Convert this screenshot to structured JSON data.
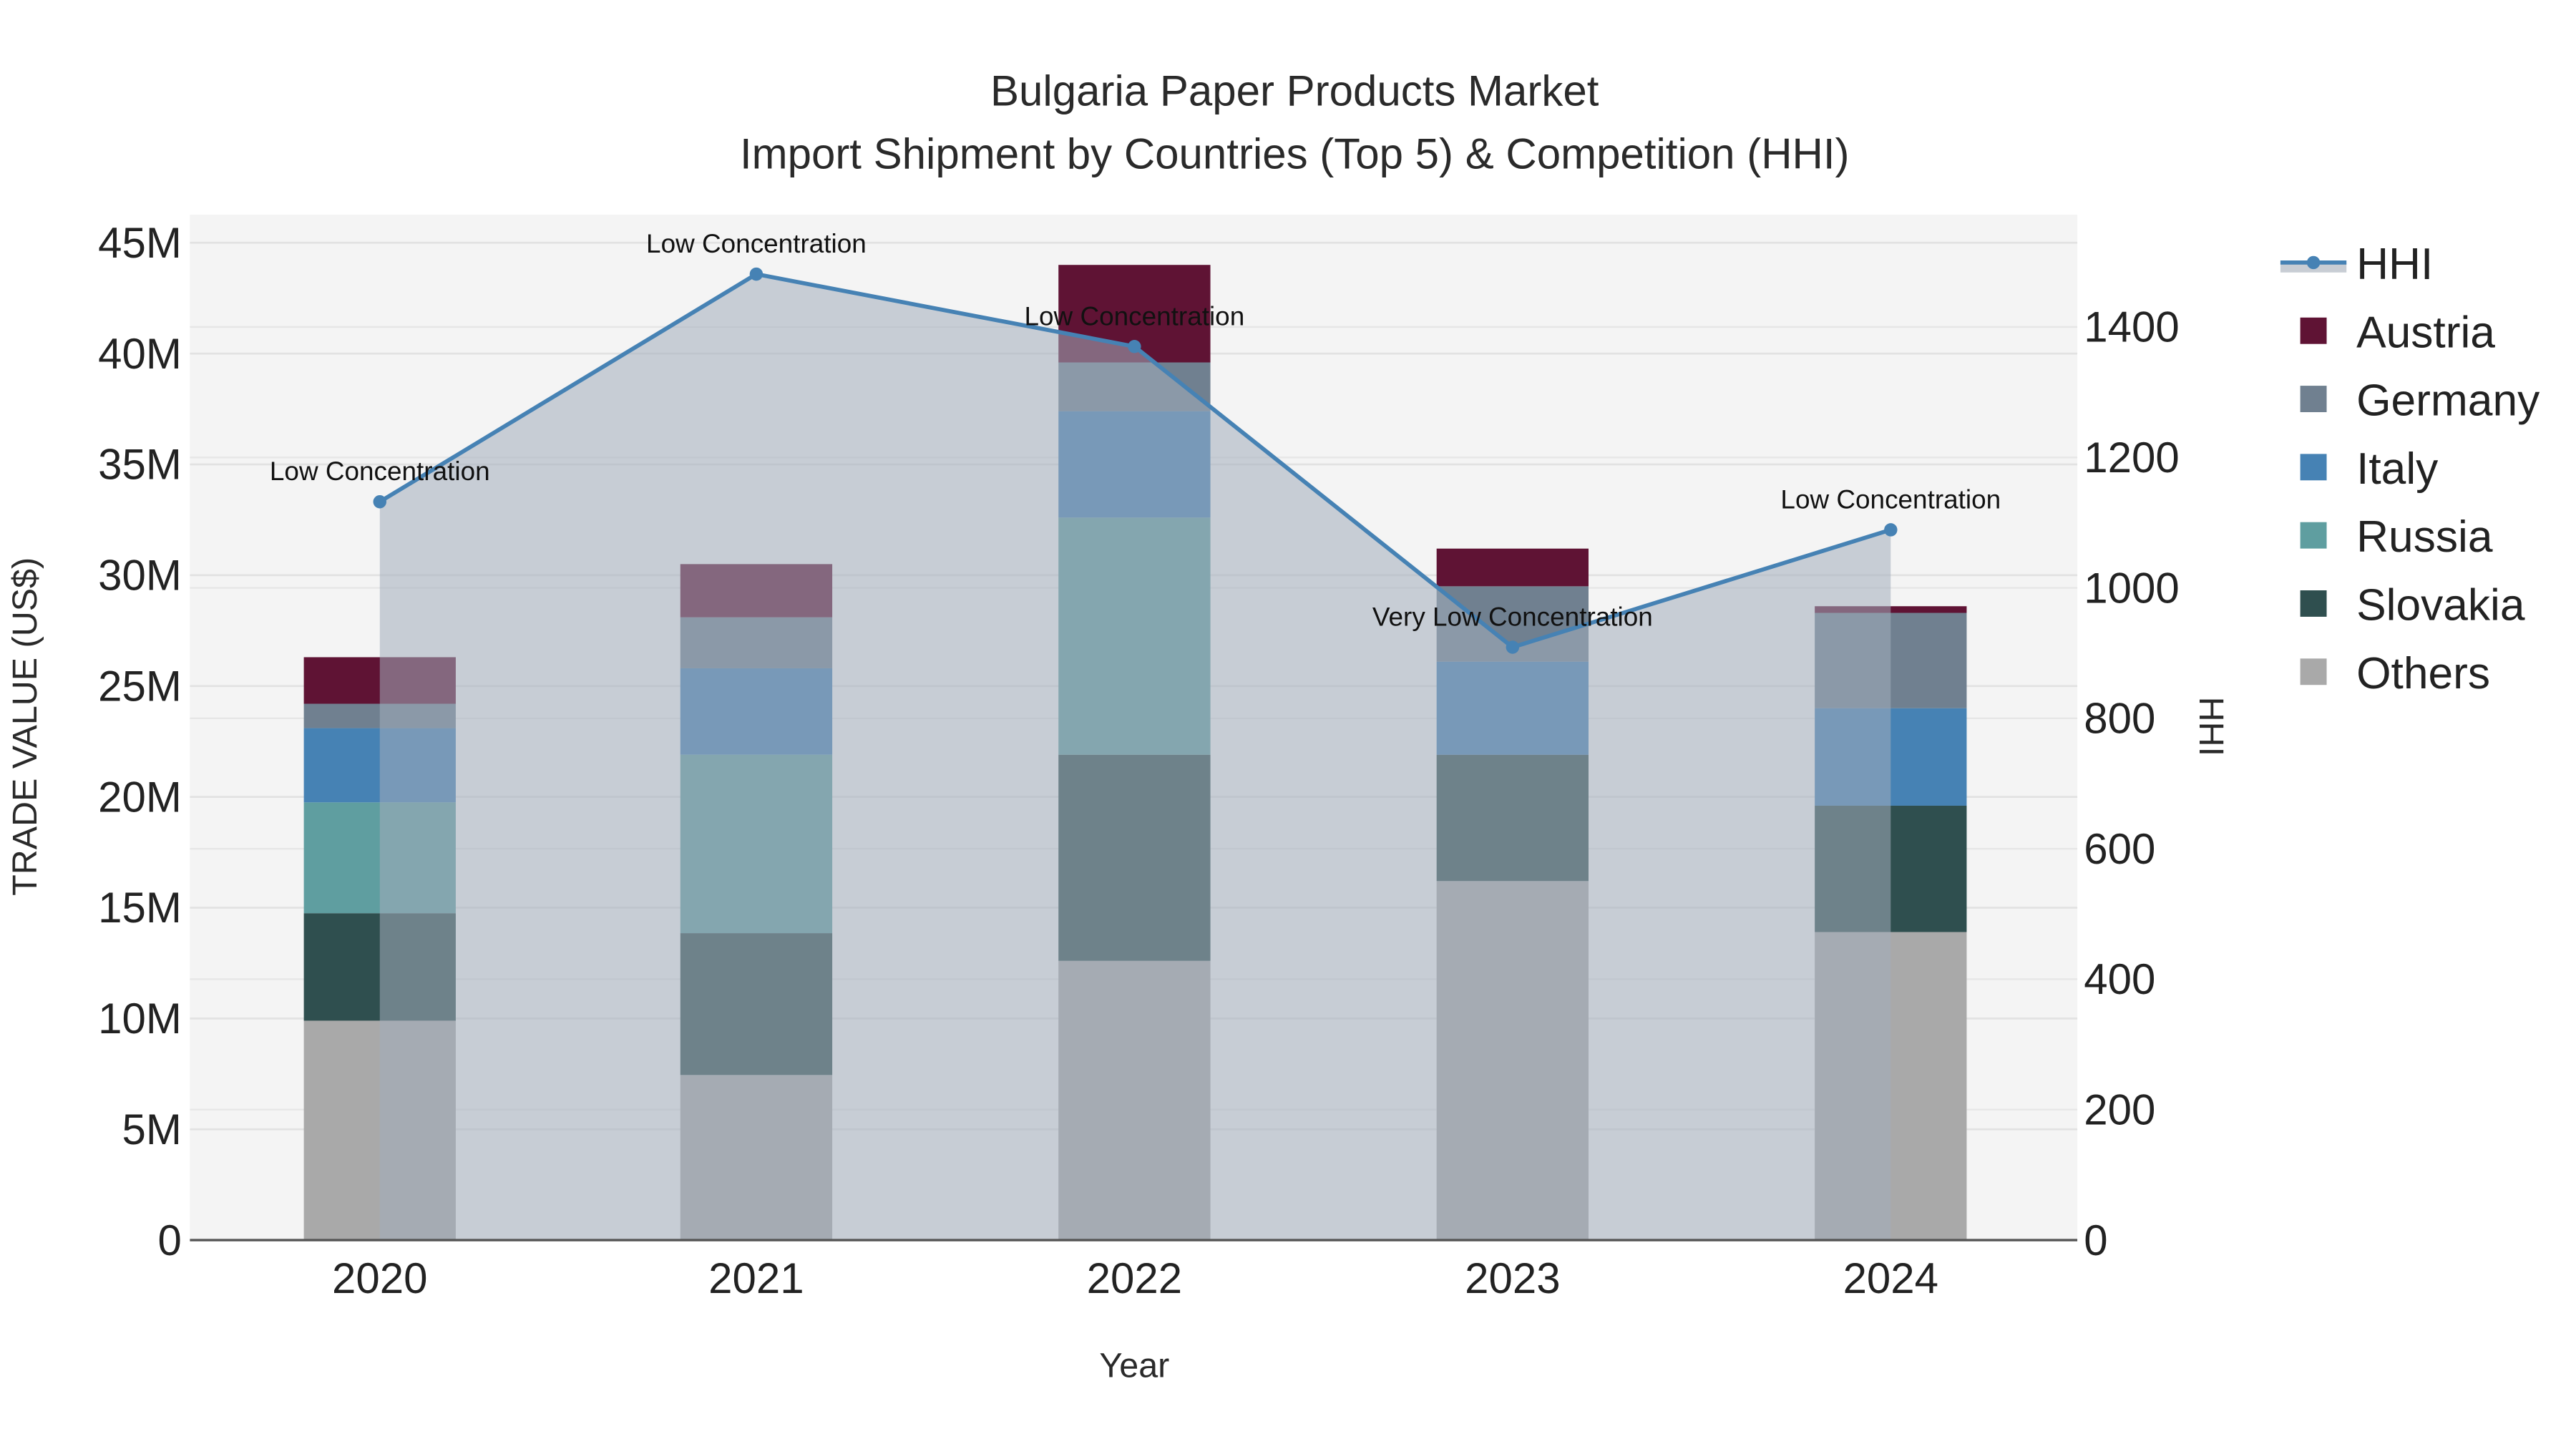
{
  "chart_data": {
    "type": "bar",
    "title": "Bulgaria Paper Products Market",
    "subtitle": "Import Shipment by Countries (Top 5) & Competition (HHI)",
    "xlabel": "Year",
    "ylabel": "TRADE VALUE (US$)",
    "y2label": "HHI",
    "categories": [
      "2020",
      "2021",
      "2022",
      "2023",
      "2024"
    ],
    "ylim": [
      0,
      46000000
    ],
    "y_ticks": [
      0,
      5000000,
      10000000,
      15000000,
      20000000,
      25000000,
      30000000,
      35000000,
      40000000,
      45000000
    ],
    "y_tick_labels": [
      "0",
      "5M",
      "10M",
      "15M",
      "20M",
      "25M",
      "30M",
      "35M",
      "40M",
      "45M"
    ],
    "y2lim": [
      0,
      1570
    ],
    "y2_ticks": [
      0,
      200,
      400,
      600,
      800,
      1000,
      1200,
      1400
    ],
    "y2_tick_labels": [
      "0",
      "200",
      "400",
      "600",
      "800",
      "1000",
      "1200",
      "1400"
    ],
    "stacked": true,
    "series": [
      {
        "name": "Others",
        "color": "#a9a9a9",
        "values": [
          9900000,
          7450000,
          12600000,
          16200000,
          13900000
        ]
      },
      {
        "name": "Slovakia",
        "color": "#2f4f4f",
        "values": [
          4850000,
          6400000,
          9300000,
          5700000,
          5700000
        ]
      },
      {
        "name": "Russia",
        "color": "#5f9ea0",
        "values": [
          5000000,
          8050000,
          10700000,
          0,
          0
        ]
      },
      {
        "name": "Italy",
        "color": "#4682b4",
        "values": [
          3350000,
          3900000,
          4800000,
          4200000,
          4400000
        ]
      },
      {
        "name": "Germany",
        "color": "#708090",
        "values": [
          1100000,
          2300000,
          2200000,
          3400000,
          4300000
        ]
      },
      {
        "name": "Austria",
        "color": "#5f1334",
        "values": [
          2100000,
          2400000,
          4400000,
          1700000,
          300000
        ]
      }
    ],
    "line": {
      "name": "HHI",
      "color": "#4682b4",
      "axis": "right",
      "values": [
        1132,
        1481,
        1370,
        909,
        1089
      ],
      "annotations": [
        "Low Concentration",
        "Low Concentration",
        "Low Concentration",
        "Very Low Concentration",
        "Low Concentration"
      ]
    },
    "legend": [
      "HHI",
      "Austria",
      "Germany",
      "Italy",
      "Russia",
      "Slovakia",
      "Others"
    ],
    "legend_placement": "right",
    "grid": true
  }
}
